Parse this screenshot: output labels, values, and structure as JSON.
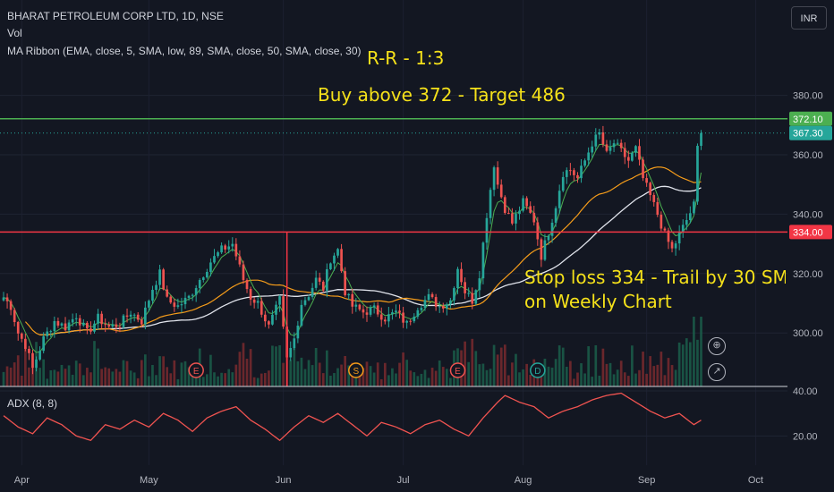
{
  "header": {
    "symbol_line": "BHARAT PETROLEUM CORP LTD, 1D, NSE",
    "vol_label": "Vol",
    "ma_line": "MA Ribbon (EMA, close, 5, SMA, low, 89, SMA, close, 50, SMA, close, 30)",
    "currency": "INR"
  },
  "annotations": {
    "rr": "R-R - 1:3",
    "buy": "Buy above 372 - Target 486",
    "stop1": "Stop loss 334 - Trail by 30 SMA",
    "stop2": "on Weekly Chart"
  },
  "adx_label": "ADX (8, 8)",
  "colors": {
    "up": "#26a69a",
    "down": "#ef5350",
    "buy_line": "#4caf50",
    "stop_line": "#f23645",
    "annotation": "#f5e11a",
    "adx": "#ef5350",
    "ema5": "#4caf50",
    "sma30": "#f59c1a",
    "sma50": "#e0e3eb"
  },
  "event_markers": [
    "E",
    "S",
    "E",
    "D"
  ],
  "chart_data": {
    "type": "candlestick",
    "price_axis": {
      "ticks": [
        300,
        320,
        340,
        360,
        380
      ],
      "labels": [
        "300.00",
        "320.00",
        "340.00",
        "360.00",
        "380.00"
      ],
      "ylim": [
        282,
        388
      ]
    },
    "adx_axis": {
      "ticks": [
        20,
        40
      ],
      "labels": [
        "20.00",
        "40.00"
      ],
      "ylim": [
        7,
        42
      ]
    },
    "x_axis": {
      "labels": [
        "Apr",
        "May",
        "Jun",
        "Jul",
        "Aug",
        "Sep",
        "Oct"
      ],
      "label_index": [
        5,
        40,
        77,
        110,
        143,
        177,
        207
      ]
    },
    "levels": [
      {
        "name": "buy",
        "value": 372.1,
        "label": "372.10"
      },
      {
        "name": "stop",
        "value": 334.0,
        "label": "334.00"
      },
      {
        "name": "last",
        "value": 367.3,
        "label": "367.30"
      }
    ],
    "key_prices": [
      [
        0,
        312
      ],
      [
        2,
        309
      ],
      [
        4,
        300
      ],
      [
        6,
        296
      ],
      [
        8,
        288
      ],
      [
        11,
        298
      ],
      [
        14,
        304
      ],
      [
        17,
        302
      ],
      [
        20,
        306
      ],
      [
        23,
        300
      ],
      [
        26,
        305
      ],
      [
        29,
        302
      ],
      [
        32,
        303
      ],
      [
        35,
        307
      ],
      [
        38,
        304
      ],
      [
        41,
        315
      ],
      [
        43,
        320
      ],
      [
        45,
        311
      ],
      [
        48,
        309
      ],
      [
        51,
        312
      ],
      [
        54,
        318
      ],
      [
        57,
        324
      ],
      [
        60,
        328
      ],
      [
        63,
        330
      ],
      [
        66,
        318
      ],
      [
        68,
        312
      ],
      [
        70,
        310
      ],
      [
        73,
        302
      ],
      [
        76,
        311
      ],
      [
        78,
        291
      ],
      [
        80,
        298
      ],
      [
        82,
        310
      ],
      [
        84,
        313
      ],
      [
        86,
        318
      ],
      [
        88,
        315
      ],
      [
        90,
        325
      ],
      [
        92,
        328
      ],
      [
        94,
        314
      ],
      [
        96,
        309
      ],
      [
        99,
        307
      ],
      [
        102,
        308
      ],
      [
        105,
        305
      ],
      [
        108,
        307
      ],
      [
        111,
        303
      ],
      [
        114,
        309
      ],
      [
        117,
        312
      ],
      [
        120,
        309
      ],
      [
        123,
        311
      ],
      [
        125,
        322
      ],
      [
        127,
        314
      ],
      [
        129,
        311
      ],
      [
        131,
        320
      ],
      [
        133,
        340
      ],
      [
        135,
        357
      ],
      [
        136,
        350
      ],
      [
        138,
        342
      ],
      [
        140,
        337
      ],
      [
        143,
        344
      ],
      [
        146,
        338
      ],
      [
        148,
        326
      ],
      [
        150,
        334
      ],
      [
        152,
        343
      ],
      [
        154,
        354
      ],
      [
        156,
        355
      ],
      [
        158,
        352
      ],
      [
        160,
        358
      ],
      [
        162,
        364
      ],
      [
        164,
        367
      ],
      [
        166,
        360
      ],
      [
        168,
        364
      ],
      [
        170,
        361
      ],
      [
        172,
        358
      ],
      [
        174,
        362
      ],
      [
        176,
        352
      ],
      [
        178,
        346
      ],
      [
        180,
        340
      ],
      [
        182,
        333
      ],
      [
        184,
        328
      ],
      [
        186,
        333
      ],
      [
        188,
        338
      ],
      [
        190,
        343
      ],
      [
        191,
        363
      ],
      [
        192,
        367.3
      ]
    ],
    "adx_values": [
      [
        0,
        29
      ],
      [
        4,
        24
      ],
      [
        8,
        21
      ],
      [
        12,
        28
      ],
      [
        16,
        25
      ],
      [
        20,
        20
      ],
      [
        24,
        18
      ],
      [
        28,
        25
      ],
      [
        32,
        23
      ],
      [
        36,
        27
      ],
      [
        40,
        24
      ],
      [
        44,
        30
      ],
      [
        48,
        27
      ],
      [
        52,
        22
      ],
      [
        56,
        28
      ],
      [
        60,
        31
      ],
      [
        64,
        33
      ],
      [
        68,
        27
      ],
      [
        72,
        23
      ],
      [
        76,
        18
      ],
      [
        80,
        24
      ],
      [
        84,
        29
      ],
      [
        88,
        26
      ],
      [
        92,
        30
      ],
      [
        96,
        25
      ],
      [
        100,
        20
      ],
      [
        104,
        26
      ],
      [
        108,
        24
      ],
      [
        112,
        21
      ],
      [
        116,
        25
      ],
      [
        120,
        27
      ],
      [
        124,
        23
      ],
      [
        128,
        20
      ],
      [
        132,
        28
      ],
      [
        136,
        35
      ],
      [
        138,
        38
      ],
      [
        142,
        35
      ],
      [
        146,
        33
      ],
      [
        150,
        28
      ],
      [
        154,
        31
      ],
      [
        158,
        33
      ],
      [
        162,
        36
      ],
      [
        166,
        38
      ],
      [
        170,
        39
      ],
      [
        174,
        35
      ],
      [
        178,
        31
      ],
      [
        182,
        28
      ],
      [
        186,
        30
      ],
      [
        190,
        25
      ],
      [
        192,
        27
      ]
    ]
  }
}
